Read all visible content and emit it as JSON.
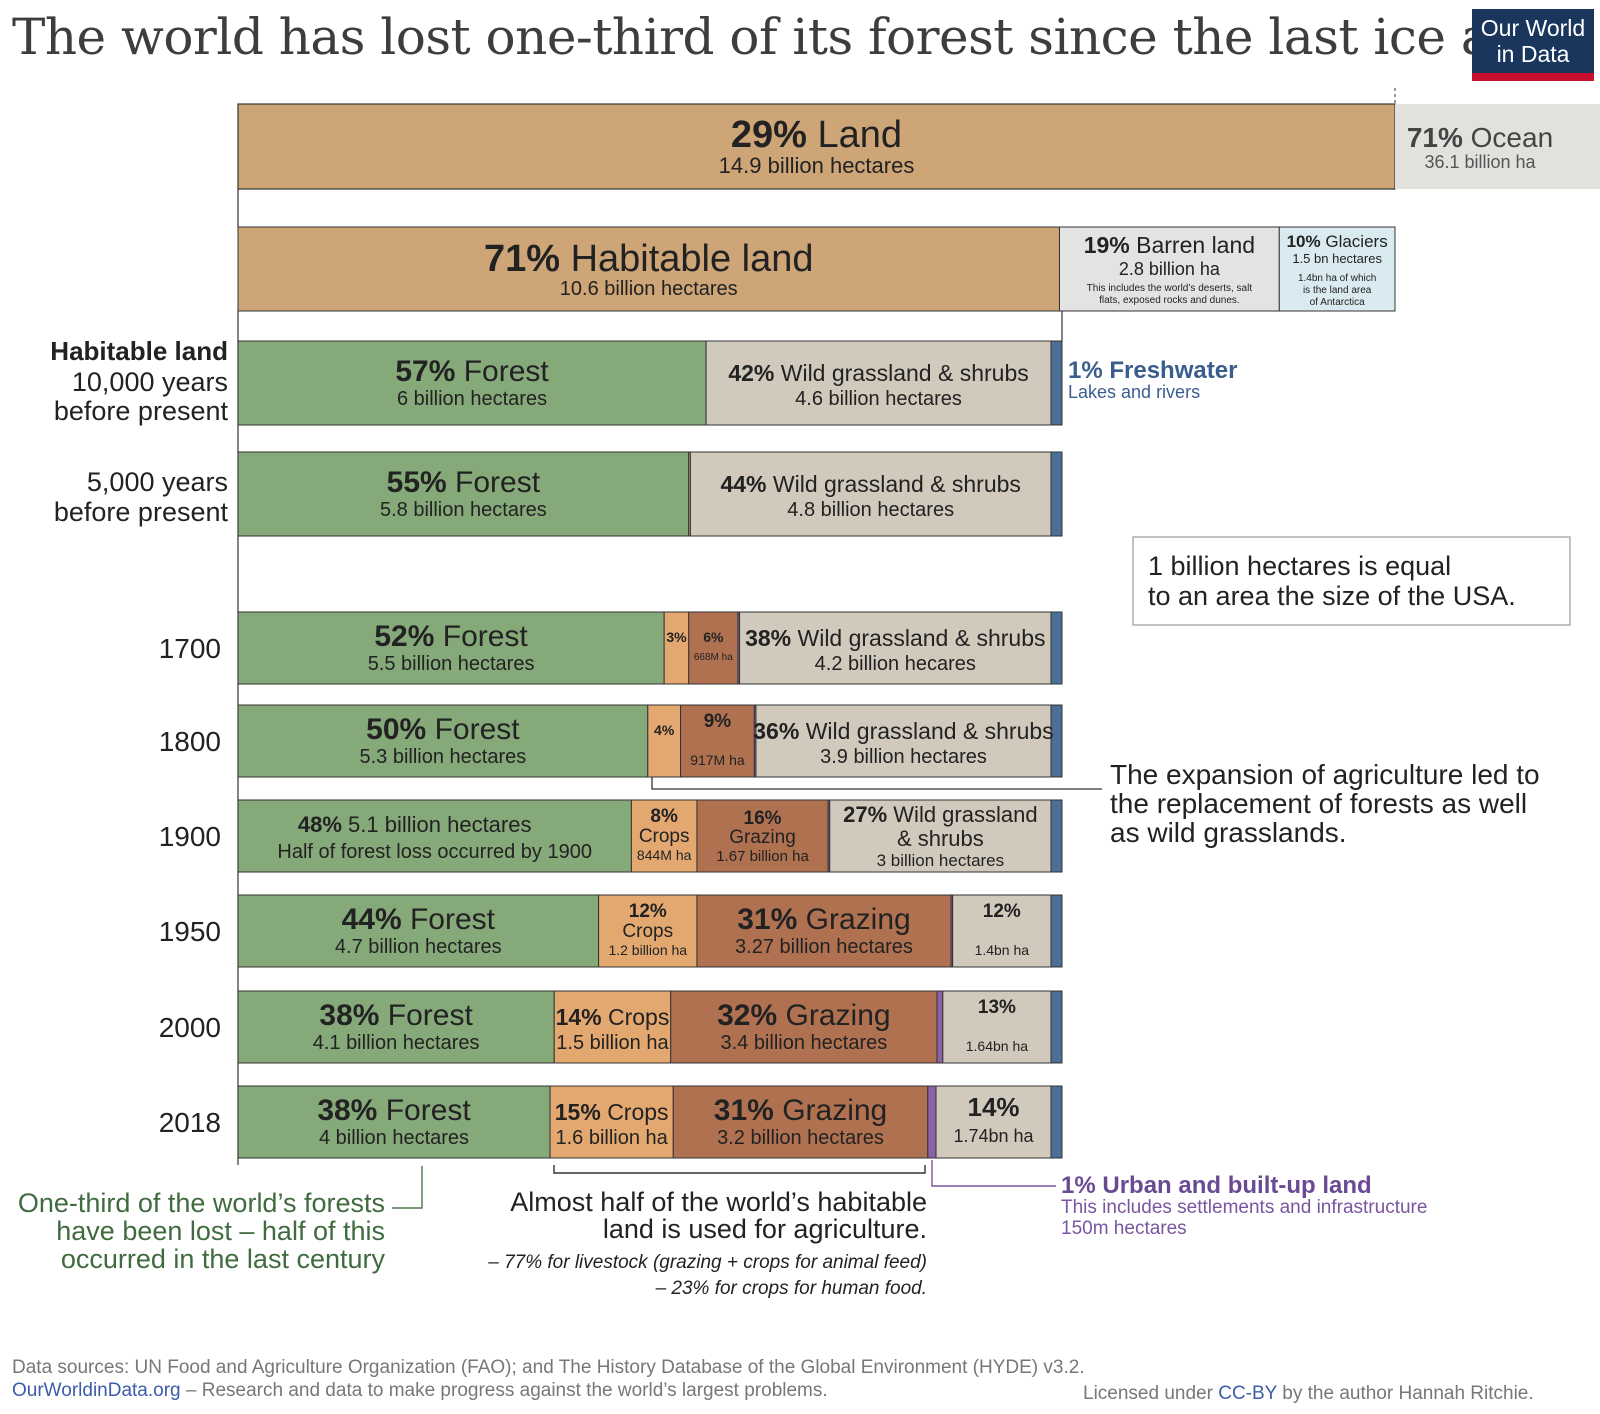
{
  "title": "The world has lost one-third of its forest since the last ice age",
  "logo": {
    "line1": "Our World",
    "line2": "in Data"
  },
  "colors": {
    "land": "#cda577",
    "ocean": "#e1e2de",
    "barren": "#e3e3e3",
    "glaciers": "#d9ebf0",
    "forest": "#86a97a",
    "wild": "#d0c9bc",
    "crops": "#e3a870",
    "grazing": "#b07151",
    "urban": "#8a63a6",
    "freshwater": "#4b6f97"
  },
  "chart_data": {
    "type": "bar",
    "orientation": "horizontal-stacked",
    "units": "percent share",
    "earth_surface": {
      "segments": [
        {
          "name": "Land",
          "pct": 29,
          "pct_label": "29%",
          "detail": "14.9 billion hectares",
          "color": "#cda577"
        },
        {
          "name": "Ocean",
          "pct": 71,
          "pct_label": "71%",
          "detail": "36.1 billion ha",
          "color": "#e1e2de"
        }
      ]
    },
    "land": {
      "segments": [
        {
          "name": "Habitable land",
          "pct": 71,
          "pct_label": "71%",
          "detail": "10.6 billion hectares",
          "color": "#cda577"
        },
        {
          "name": "Barren land",
          "pct": 19,
          "pct_label": "19%",
          "detail": "2.8 billion ha",
          "note": "This includes the world’s deserts, salt flats,  exposed rocks and dunes.",
          "color": "#e3e3e3"
        },
        {
          "name": "Glaciers",
          "pct": 10,
          "pct_label": "10%",
          "detail": "1.5 bn hectares",
          "note": "1.4bn ha of which is the land area of Antarctica",
          "color": "#d9ebf0"
        }
      ]
    },
    "habitable_heading": "Habitable land",
    "rows": [
      {
        "label": "10,000 years before present",
        "values": {
          "forest": 57,
          "crops": 0,
          "grazing": 0,
          "urban": 0,
          "wild": 42,
          "freshwater": 1
        },
        "texts": [
          {
            "seg": "forest",
            "big": "57%",
            "name": "Forest",
            "sub": "6 billion hectares"
          },
          {
            "seg": "wild",
            "big": "42%",
            "name": "Wild grassland & shrubs",
            "sub": "4.6 billion hectares"
          }
        ]
      },
      {
        "label": "5,000 years before present",
        "values": {
          "forest": 55,
          "crops": 0.2,
          "grazing": 0,
          "urban": 0,
          "wild": 44,
          "freshwater": 1
        },
        "texts": [
          {
            "seg": "forest",
            "big": "55%",
            "name": "Forest",
            "sub": "5.8 billion hectares"
          },
          {
            "seg": "wild",
            "big": "44%",
            "name": "Wild grassland & shrubs",
            "sub": "4.8 billion hectares"
          }
        ]
      },
      {
        "label": "1700",
        "values": {
          "forest": 52,
          "crops": 3,
          "grazing": 6,
          "urban": 0.2,
          "wild": 38,
          "freshwater": 1
        },
        "texts": [
          {
            "seg": "forest",
            "big": "52%",
            "name": "Forest",
            "sub": "5.5 billion hectares"
          },
          {
            "seg": "crops",
            "big": "3%",
            "name": "",
            "sub": ""
          },
          {
            "seg": "grazing",
            "big": "6%",
            "name": "",
            "sub": "668M ha"
          },
          {
            "seg": "wild",
            "big": "38%",
            "name": "Wild grassland & shrubs",
            "sub": "4.2 billion hecares"
          }
        ]
      },
      {
        "label": "1800",
        "values": {
          "forest": 50,
          "crops": 4,
          "grazing": 9,
          "urban": 0.2,
          "wild": 36,
          "freshwater": 1
        },
        "texts": [
          {
            "seg": "forest",
            "big": "50%",
            "name": "Forest",
            "sub": "5.3 billion hectares"
          },
          {
            "seg": "crops",
            "big": "4%",
            "name": "",
            "sub": ""
          },
          {
            "seg": "grazing",
            "big": "9%",
            "name": "",
            "sub": "917M ha"
          },
          {
            "seg": "wild",
            "big": "36%",
            "name": "Wild grassland & shrubs",
            "sub": "3.9 billion hectares"
          }
        ]
      },
      {
        "label": "1900",
        "values": {
          "forest": 48,
          "crops": 8,
          "grazing": 16,
          "urban": 0.2,
          "wild": 27,
          "freshwater": 1
        },
        "texts": [
          {
            "seg": "forest",
            "big": "48%",
            "name": "5.1 billion hectares",
            "sub": "Half of forest loss occurred by 1900"
          },
          {
            "seg": "crops",
            "big": "8%",
            "name": "Crops",
            "sub": "844M ha"
          },
          {
            "seg": "grazing",
            "big": "16%",
            "name": "Grazing",
            "sub": "1.67 billion ha"
          },
          {
            "seg": "wild",
            "big": "27%",
            "name": "Wild grassland",
            "name2": "& shrubs",
            "sub": "3 billion hectares"
          }
        ]
      },
      {
        "label": "1950",
        "values": {
          "forest": 44,
          "crops": 12,
          "grazing": 31,
          "urban": 0.2,
          "wild": 12,
          "freshwater": 1
        },
        "texts": [
          {
            "seg": "forest",
            "big": "44%",
            "name": "Forest",
            "sub": "4.7 billion hectares"
          },
          {
            "seg": "crops",
            "big": "12%",
            "name": "Crops",
            "sub": "1.2 billion ha"
          },
          {
            "seg": "grazing",
            "big": "31%",
            "name": "Grazing",
            "sub": "3.27 billion hectares"
          },
          {
            "seg": "wild",
            "big": "12%",
            "name": "",
            "sub": "1.4bn ha"
          }
        ]
      },
      {
        "label": "2000",
        "values": {
          "forest": 38,
          "crops": 14,
          "grazing": 32,
          "urban": 0.7,
          "wild": 13,
          "freshwater": 1
        },
        "texts": [
          {
            "seg": "forest",
            "big": "38%",
            "name": "Forest",
            "sub": "4.1 billion hectares"
          },
          {
            "seg": "crops",
            "big": "14%",
            "name": "Crops",
            "sub": "1.5 billion ha"
          },
          {
            "seg": "grazing",
            "big": "32%",
            "name": "Grazing",
            "sub": "3.4 billion hectares"
          },
          {
            "seg": "wild",
            "big": "13%",
            "name": "",
            "sub": "1.64bn ha"
          }
        ]
      },
      {
        "label": "2018",
        "values": {
          "forest": 38,
          "crops": 15,
          "grazing": 31,
          "urban": 1,
          "wild": 14,
          "freshwater": 1
        },
        "texts": [
          {
            "seg": "forest",
            "big": "38%",
            "name": "Forest",
            "sub": "4 billion hectares"
          },
          {
            "seg": "crops",
            "big": "15%",
            "name": "Crops",
            "sub": "1.6 billion ha"
          },
          {
            "seg": "grazing",
            "big": "31%",
            "name": "Grazing",
            "sub": "3.2 billion hectares"
          },
          {
            "seg": "wild",
            "big": "14%",
            "name": "",
            "sub": "1.74bn ha"
          }
        ]
      }
    ],
    "annotations": {
      "freshwater": {
        "title": "1% Freshwater",
        "sub": "Lakes and rivers"
      },
      "usa_box": {
        "line1": "1 billion hectares is equal",
        "line2": "to an area the size of the USA."
      },
      "expansion": {
        "line1": "The expansion of agriculture led to",
        "line2": "the replacement of forests as well",
        "line3": "as wild grasslands."
      },
      "forest_loss": {
        "line1": "One-third of the world’s forests",
        "line2": "have been lost – half of this",
        "line3": "occurred in the last century"
      },
      "agriculture": {
        "line1": "Almost half of the world’s habitable",
        "line2": "land is used for agriculture.",
        "line3": "– 77% for livestock (grazing + crops for animal feed)",
        "line4": "– 23% for crops for human food."
      },
      "urban": {
        "title": "1% Urban and built-up land",
        "line1": "This includes settlements and infrastructure",
        "line2": "150m hectares"
      }
    }
  },
  "footer": {
    "source": "Data sources: UN  Food and Agriculture Organization (FAO); and The History Database of the Global Environment (HYDE) v3.2.",
    "site": "OurWorldinData.org",
    "site_rest": " – Research and data to make progress against the world’s largest problems.",
    "license_prefix": "Licensed under ",
    "license_link": "CC-BY",
    "license_suffix": " by the author Hannah Ritchie."
  }
}
